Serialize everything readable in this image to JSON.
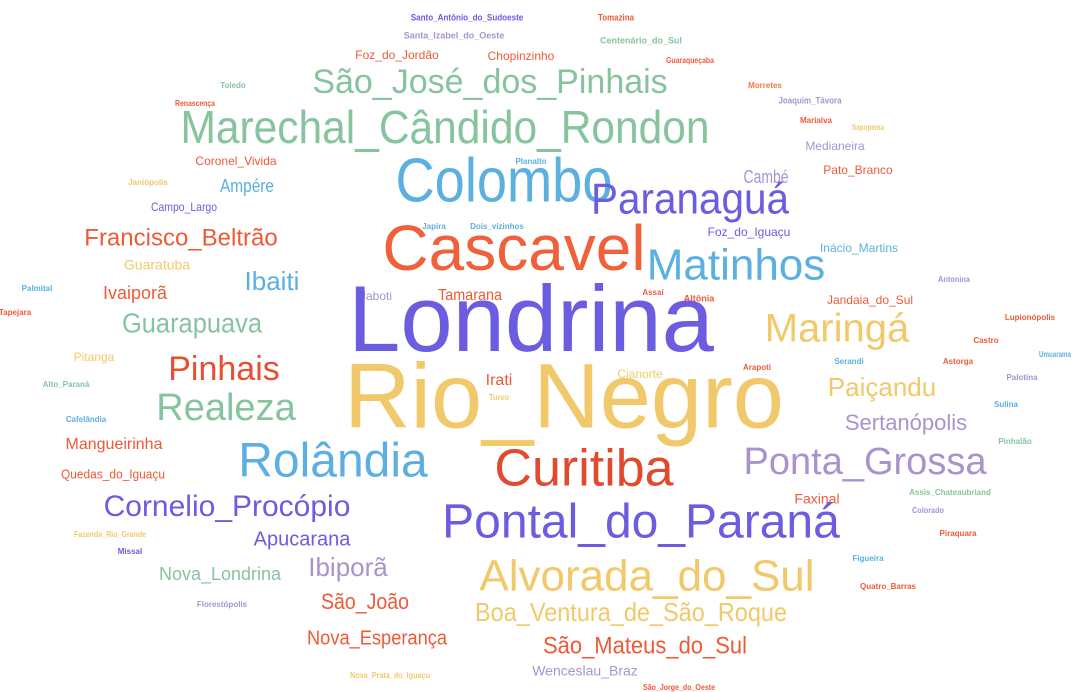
{
  "chart_data": {
    "type": "wordcloud",
    "words": [
      {
        "text": "Santo_Antônio_do_Sudoeste",
        "color": "#6c5ce0"
      },
      {
        "text": "Tomazina",
        "color": "#ee5a38"
      },
      {
        "text": "Santa_Izabel_do_Oeste",
        "color": "#a893cf"
      },
      {
        "text": "Centenário_do_Sul",
        "color": "#86c49e"
      },
      {
        "text": "Foz_do_Jordão",
        "color": "#ee5a38"
      },
      {
        "text": "Chopinzinho",
        "color": "#ee5a38"
      },
      {
        "text": "Guaraqueçaba",
        "color": "#ee5a38"
      },
      {
        "text": "Toledo",
        "color": "#86c49e"
      },
      {
        "text": "São_José_dos_Pinhais",
        "color": "#86c49e"
      },
      {
        "text": "Morretes",
        "color": "#f07a3c"
      },
      {
        "text": "Renascença",
        "color": "#ee5a38"
      },
      {
        "text": "Joaquim_Távora",
        "color": "#a893cf"
      },
      {
        "text": "Marechal_Cândido_Rondon",
        "color": "#86c49e"
      },
      {
        "text": "Marialva",
        "color": "#ee5a38"
      },
      {
        "text": "Sapopema",
        "color": "#f2c96a"
      },
      {
        "text": "Medianeira",
        "color": "#a893cf"
      },
      {
        "text": "Coronel_Vivida",
        "color": "#ee5a38"
      },
      {
        "text": "Planalto",
        "color": "#5bb0e0"
      },
      {
        "text": "Colombo",
        "color": "#5bb0e0"
      },
      {
        "text": "Pato_Branco",
        "color": "#ee5a38"
      },
      {
        "text": "Janiópolis",
        "color": "#f2c96a"
      },
      {
        "text": "Ampére",
        "color": "#5bb0e0"
      },
      {
        "text": "Cambé",
        "color": "#a893cf"
      },
      {
        "text": "Campo_Largo",
        "color": "#6c5ce0"
      },
      {
        "text": "Paranaguá",
        "color": "#6c5ce0"
      },
      {
        "text": "Japira",
        "color": "#5bb0e0"
      },
      {
        "text": "Dois_vizinhos",
        "color": "#5bb0e0"
      },
      {
        "text": "Foz_do_Iguaçu",
        "color": "#6c5ce0"
      },
      {
        "text": "Francisco_Beltrão",
        "color": "#ee5a38"
      },
      {
        "text": "Cascavel",
        "color": "#f0603a"
      },
      {
        "text": "Inácio_Martins",
        "color": "#5bb0e0"
      },
      {
        "text": "Guaratuba",
        "color": "#f2c96a"
      },
      {
        "text": "Matinhos",
        "color": "#5bb0e0"
      },
      {
        "text": "Ivaiporã",
        "color": "#ee5a38"
      },
      {
        "text": "Ibaiti",
        "color": "#5bb0e0"
      },
      {
        "text": "Palmital",
        "color": "#5bb0e0"
      },
      {
        "text": "Antonina",
        "color": "#a893cf"
      },
      {
        "text": "Jaboti",
        "color": "#a893cf"
      },
      {
        "text": "Tamarana",
        "color": "#ee5a38"
      },
      {
        "text": "Assaí",
        "color": "#ee5a38"
      },
      {
        "text": "Altônia",
        "color": "#ee5a38"
      },
      {
        "text": "Jandaia_do_Sul",
        "color": "#ee5a38"
      },
      {
        "text": "Tapejara",
        "color": "#ee5a38"
      },
      {
        "text": "Lupionópolis",
        "color": "#ee5a38"
      },
      {
        "text": "Londrina",
        "color": "#6c5ce0"
      },
      {
        "text": "Guarapuava",
        "color": "#86c49e"
      },
      {
        "text": "Maringá",
        "color": "#f2c96a"
      },
      {
        "text": "Castro",
        "color": "#ee5a38"
      },
      {
        "text": "Umuarama",
        "color": "#5bb0e0"
      },
      {
        "text": "Pitanga",
        "color": "#f2c96a"
      },
      {
        "text": "Pinhais",
        "color": "#e84e32"
      },
      {
        "text": "Serandi",
        "color": "#5bb0e0"
      },
      {
        "text": "Astorga",
        "color": "#ee5a38"
      },
      {
        "text": "Arapoti",
        "color": "#ee5a38"
      },
      {
        "text": "Cianorte",
        "color": "#f2c96a"
      },
      {
        "text": "Irati",
        "color": "#ee5a38"
      },
      {
        "text": "Palotina",
        "color": "#a893cf"
      },
      {
        "text": "Alto_Paraná",
        "color": "#86c49e"
      },
      {
        "text": "Rio_Negro",
        "color": "#f2c96a"
      },
      {
        "text": "Paiçandu",
        "color": "#f2c96a"
      },
      {
        "text": "Turvo",
        "color": "#f2c96a"
      },
      {
        "text": "Realeza",
        "color": "#86c49e"
      },
      {
        "text": "Sulina",
        "color": "#5bb0e0"
      },
      {
        "text": "Cafelândia",
        "color": "#5bb0e0"
      },
      {
        "text": "Sertanópolis",
        "color": "#a893cf"
      },
      {
        "text": "Pinhalão",
        "color": "#86c49e"
      },
      {
        "text": "Mangueirinha",
        "color": "#ee5a38"
      },
      {
        "text": "Rolândia",
        "color": "#5bb0e0"
      },
      {
        "text": "Curitiba",
        "color": "#e04b2f"
      },
      {
        "text": "Ponta_Grossa",
        "color": "#a893cf"
      },
      {
        "text": "Quedas_do_Iguaçu",
        "color": "#ee5a38"
      },
      {
        "text": "Assis_Chateaubriand",
        "color": "#86c49e"
      },
      {
        "text": "Faxinal",
        "color": "#ee5a38"
      },
      {
        "text": "Cornelio_Procópio",
        "color": "#6c5ce0"
      },
      {
        "text": "Colorado",
        "color": "#a893cf"
      },
      {
        "text": "Pontal_do_Paraná",
        "color": "#6c5ce0"
      },
      {
        "text": "Fazenda_Rio_Grande",
        "color": "#f2c96a"
      },
      {
        "text": "Piraquara",
        "color": "#ee5a38"
      },
      {
        "text": "Apucarana",
        "color": "#6c5ce0"
      },
      {
        "text": "Missal",
        "color": "#6c5ce0"
      },
      {
        "text": "Figueira",
        "color": "#5bb0e0"
      },
      {
        "text": "Ibiporã",
        "color": "#a893cf"
      },
      {
        "text": "Nova_Londrina",
        "color": "#86c49e"
      },
      {
        "text": "Alvorada_do_Sul",
        "color": "#f2c96a"
      },
      {
        "text": "Quatro_Barras",
        "color": "#ee5a38"
      },
      {
        "text": "Florestópolis",
        "color": "#a893cf"
      },
      {
        "text": "São_João",
        "color": "#ee5a38"
      },
      {
        "text": "Boa_Ventura_de_São_Roque",
        "color": "#f2c96a"
      },
      {
        "text": "Nova_Esperança",
        "color": "#ee5a38"
      },
      {
        "text": "São_Mateus_do_Sul",
        "color": "#ee5a38"
      },
      {
        "text": "Wenceslau_Braz",
        "color": "#a893cf"
      },
      {
        "text": "Nova_Prata_do_Iguaçu",
        "color": "#f2c96a"
      },
      {
        "text": "São_Jorge_do_Oeste",
        "color": "#ee5a38"
      }
    ]
  }
}
